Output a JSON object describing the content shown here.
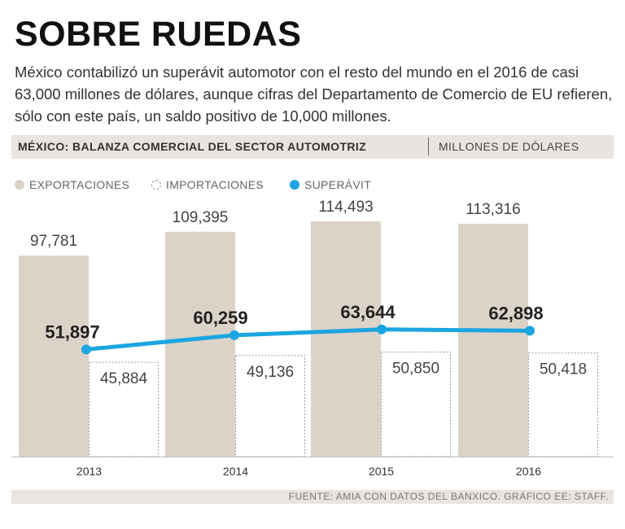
{
  "title": "SOBRE RUEDAS",
  "subtitle": "México contabilizó un superávit automotor con el resto del mundo en el 2016 de casi 63,000 millones de dólares, aunque cifras del Departamento de Comercio de EU refieren, sólo con este país, un saldo positivo de 10,000 millones.",
  "header": {
    "main": "MÉXICO: BALANZA COMERCIAL DEL SECTOR AUTOMOTRIZ",
    "unit": "MILLONES DE DÓLARES"
  },
  "footer": "FUENTE: AMIA CON DATOS DEL BANXICO. GRÁFICO EE: STAFF.",
  "colors": {
    "exports": "#dcd3c8",
    "imports_border": "#999999",
    "surplus": "#1ba6e1"
  },
  "chart_data": {
    "type": "bar",
    "title": "MÉXICO: BALANZA COMERCIAL DEL SECTOR AUTOMOTRIZ",
    "ylabel": "MILLONES DE DÓLARES",
    "categories": [
      "2013",
      "2014",
      "2015",
      "2016"
    ],
    "series": [
      {
        "name": "EXPORTACIONES",
        "kind": "bar",
        "values": [
          97781,
          109395,
          114493,
          113316
        ],
        "labels": [
          "97,781",
          "109,395",
          "114,493",
          "113,316"
        ]
      },
      {
        "name": "IMPORTACIONES",
        "kind": "bar",
        "values": [
          45884,
          49136,
          50850,
          50418
        ],
        "labels": [
          "45,884",
          "49,136",
          "50,850",
          "50,418"
        ]
      },
      {
        "name": "SUPERÁVIT",
        "kind": "line",
        "values": [
          51897,
          60259,
          63644,
          62898
        ],
        "labels": [
          "51,897",
          "60,259",
          "63,644",
          "62,898"
        ]
      }
    ],
    "bar_ylim": [
      0,
      125000
    ],
    "line_ylim": [
      0,
      125000
    ],
    "legend": "top-left"
  }
}
